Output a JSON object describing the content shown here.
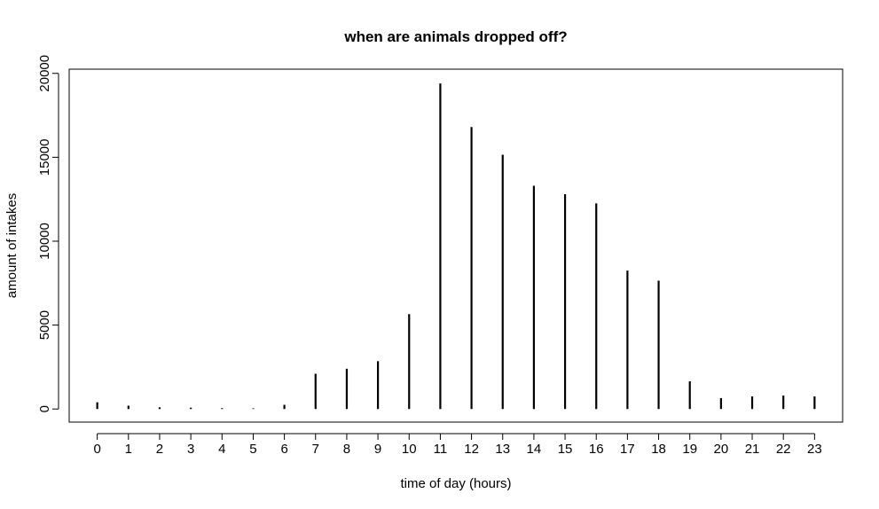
{
  "chart_data": {
    "type": "bar",
    "title": "when are animals dropped off?",
    "xlabel": "time of day (hours)",
    "ylabel": "amount of intakes",
    "categories": [
      "0",
      "1",
      "2",
      "3",
      "4",
      "5",
      "6",
      "7",
      "8",
      "9",
      "10",
      "11",
      "12",
      "13",
      "14",
      "15",
      "16",
      "17",
      "18",
      "19",
      "20",
      "21",
      "22",
      "23"
    ],
    "values": [
      400,
      200,
      100,
      80,
      50,
      40,
      250,
      2100,
      2400,
      2850,
      5650,
      19400,
      16800,
      15150,
      13300,
      12800,
      12250,
      8250,
      7650,
      1650,
      650,
      750,
      800,
      750
    ],
    "ylim": [
      0,
      20000
    ],
    "yticks": [
      "0",
      "5000",
      "10000",
      "15000",
      "20000"
    ],
    "xlim": [
      -0.9,
      23.9
    ],
    "ylim_plot": [
      -780,
      20250
    ],
    "grid": false,
    "colors": {
      "bar": "#000000",
      "axis": "#000000"
    }
  }
}
